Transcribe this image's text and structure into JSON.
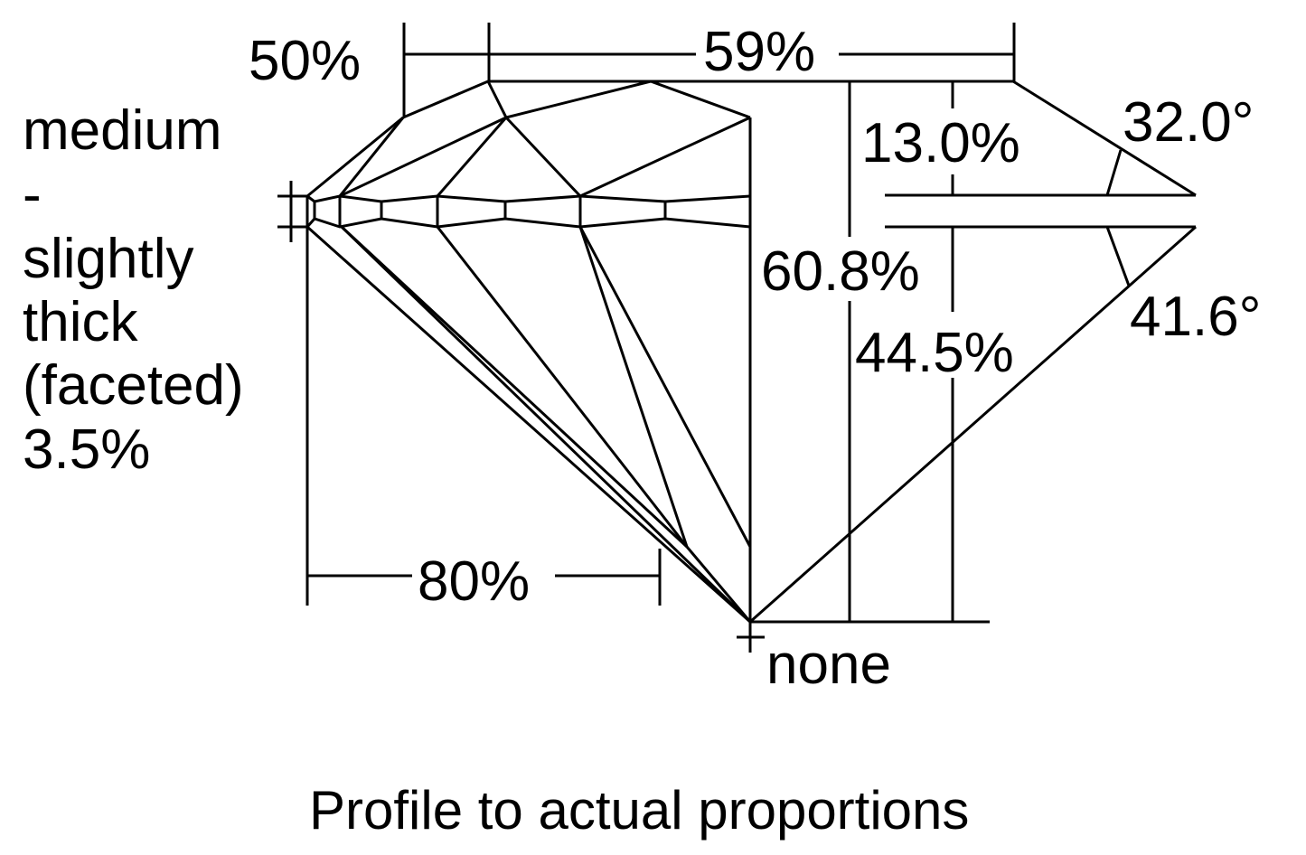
{
  "diagram": {
    "caption": "Profile to actual proportions",
    "crown_height_label": "50%",
    "table_label": "59%",
    "girdle_label_lines": [
      "medium",
      "-",
      "slightly",
      "thick",
      "(faceted)",
      "3.5%"
    ],
    "crown_height_pct": "13.0%",
    "crown_angle": "32.0°",
    "total_depth": "60.8%",
    "pavilion_depth": "44.5%",
    "pavilion_angle": "41.6°",
    "lower_half_label": "80%",
    "culet": "none"
  }
}
